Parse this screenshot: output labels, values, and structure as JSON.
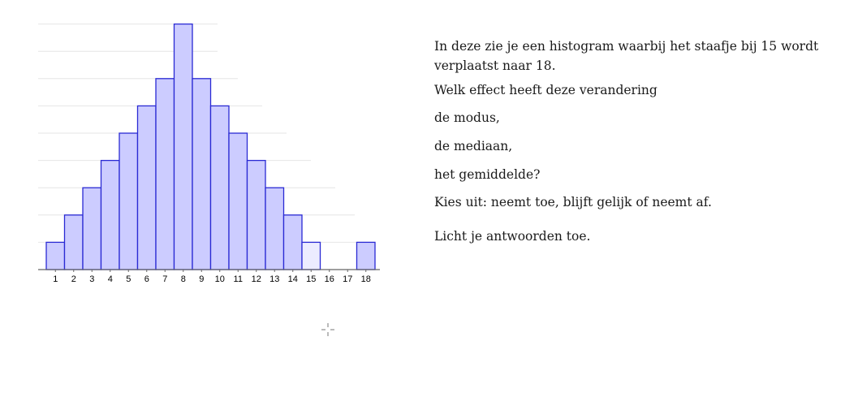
{
  "chart_data": {
    "type": "bar",
    "categories": [
      "1",
      "2",
      "3",
      "4",
      "5",
      "6",
      "7",
      "8",
      "9",
      "10",
      "11",
      "12",
      "13",
      "14",
      "15",
      "16",
      "17",
      "18"
    ],
    "values": [
      1,
      2,
      3,
      4,
      5,
      6,
      7,
      9,
      7,
      6,
      5,
      4,
      3,
      2,
      1,
      0,
      0,
      1
    ],
    "faded_categories": [
      "15"
    ],
    "ylim": [
      0,
      9
    ],
    "grid": true,
    "title": "",
    "xlabel": "",
    "ylabel": ""
  },
  "text_panel": {
    "intro": "In deze zie je een histogram waarbij het staafje bij 15 wordt verplaatst naar 18.",
    "question": "Welk effect heeft deze verandering",
    "modus": "de modus,",
    "mediaan": "de mediaan,",
    "gemiddelde": "het gemiddelde?",
    "kies": "Kies uit: neemt toe, blijft gelijk of neemt af.",
    "licht": "Licht je antwoorden toe."
  },
  "colors": {
    "bar_fill": "#ccccff",
    "bar_stroke": "#2a2ad4",
    "faded_bar_fill": "#ececff"
  },
  "cursor": {
    "icon": "crosshair-cursor-icon"
  }
}
